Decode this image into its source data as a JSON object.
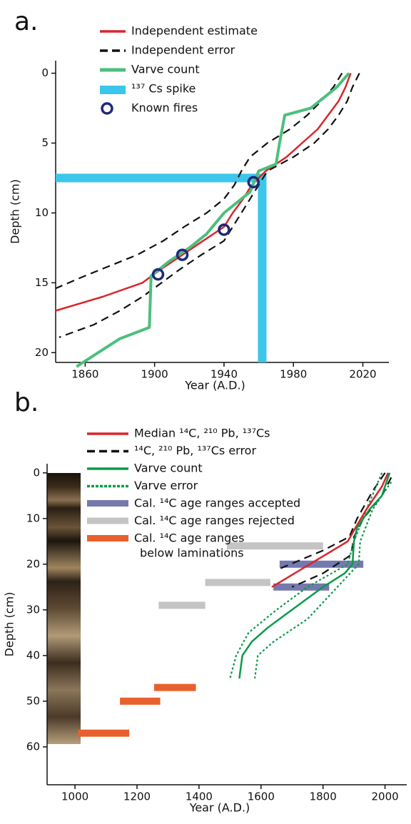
{
  "chart_data": [
    {
      "type": "line",
      "panel_label": "a.",
      "x_label": "Year (A.D.)",
      "y_label": "Depth (cm)",
      "xlim": [
        1843,
        2035
      ],
      "ylim": [
        -0.9,
        20.7
      ],
      "y_inverted": true,
      "xticks": [
        1860,
        1900,
        1940,
        1980,
        2020
      ],
      "yticks": [
        0,
        5,
        10,
        15,
        20
      ],
      "series": [
        {
          "name": "Independent estimate",
          "kind": "line",
          "line_style": "solid",
          "color": "#d9252b",
          "x": [
            2013,
            2010,
            2006,
            2000,
            1994,
            1985,
            1976,
            1964,
            1956,
            1951,
            1945,
            1940,
            1928,
            1916,
            1904,
            1893,
            1870,
            1843
          ],
          "y": [
            0,
            1,
            2,
            3,
            4,
            5,
            6,
            7,
            8,
            9,
            10,
            11,
            12,
            13,
            14,
            15,
            16,
            17
          ]
        },
        {
          "name": "Independent error",
          "kind": "band",
          "line_style": "dashed",
          "color": "#111111",
          "lower": {
            "x": [
              2008,
              2003,
              1996,
              1988,
              1978,
              1965,
              1955,
              1950,
              1946,
              1940,
              1930,
              1917,
              1905,
              1890,
              1860,
              1843
            ],
            "y": [
              0,
              1,
              2,
              3,
              4,
              5,
              6,
              7,
              8,
              9,
              10,
              11,
              12,
              13,
              14.5,
              15.4
            ]
          },
          "upper": {
            "x": [
              2018,
              2014,
              2011,
              2006,
              2000,
              1992,
              1980,
              1965,
              1960,
              1955,
              1950,
              1945,
              1940,
              1927,
              1915,
              1904,
              1893,
              1880,
              1865,
              1845
            ],
            "y": [
              0,
              1,
              2,
              3,
              4,
              5,
              6,
              7,
              8,
              9,
              10,
              11,
              12,
              13,
              14,
              15,
              16,
              17,
              18,
              18.9
            ]
          }
        },
        {
          "name": "Varve count",
          "kind": "line",
          "line_style": "solid",
          "color": "#4cbf7d",
          "x": [
            2012,
            2005,
            1990,
            1975,
            1972,
            1970,
            1960,
            1955,
            1945,
            1940,
            1930,
            1920,
            1908,
            1898,
            1897,
            1880,
            1855
          ],
          "y": [
            0,
            1,
            2.5,
            3,
            5,
            6.5,
            7,
            8.5,
            9.5,
            10,
            11.5,
            12.5,
            13.5,
            14.5,
            18.2,
            19,
            21
          ]
        },
        {
          "name": "¹³⁷ Cs spike",
          "kind": "spike",
          "color": "#3cc6ea",
          "x": 1962,
          "y": 7.5
        },
        {
          "name": "Known fires",
          "kind": "marker",
          "color": "#1f2a7a",
          "x": [
            1902,
            1916,
            1940,
            1957
          ],
          "y": [
            14.4,
            13,
            11.2,
            7.8
          ]
        }
      ]
    },
    {
      "type": "line",
      "panel_label": "b.",
      "x_label": "Year (A.D.)",
      "y_label": "Depth (cm)",
      "xlim": [
        910,
        2070
      ],
      "ylim": [
        -2,
        68.3
      ],
      "y_inverted": true,
      "xticks": [
        1000,
        1200,
        1400,
        1600,
        1800,
        2000
      ],
      "yticks": [
        0,
        10,
        20,
        30,
        40,
        50,
        60
      ],
      "series": [
        {
          "name": "Median ¹⁴C, ²¹⁰ Pb, ¹³⁷Cs",
          "kind": "line",
          "line_style": "solid",
          "color": "#d9252b",
          "x": [
            2010,
            1990,
            1940,
            1905,
            1880,
            1635
          ],
          "y": [
            0,
            3,
            8,
            12,
            15,
            25
          ]
        },
        {
          "name": "¹⁴C, ²¹⁰ Pb, ¹³⁷Cs error",
          "kind": "band",
          "line_style": "dashed",
          "color": "#111111",
          "lower": {
            "x": [
              2000,
              1960,
              1910,
              1885,
              1800,
              1660
            ],
            "y": [
              0,
              4,
              10,
              14,
              17,
              21
            ]
          },
          "upper": {
            "x": [
              2020,
              1990,
              1930,
              1900,
              1890,
              1800,
              1700
            ],
            "y": [
              1,
              5,
              10,
              14,
              18,
              22,
              25
            ]
          }
        },
        {
          "name": "Varve count",
          "kind": "line",
          "line_style": "solid",
          "color": "#0a9a48",
          "x": [
            2015,
            1990,
            1950,
            1910,
            1900,
            1895,
            1870,
            1800,
            1700,
            1620,
            1570,
            1540,
            1530
          ],
          "y": [
            0,
            5,
            8,
            12,
            15,
            20,
            22,
            25,
            30,
            34,
            37,
            40,
            45
          ]
        },
        {
          "name": "Varve error",
          "kind": "band",
          "line_style": "dotted",
          "color": "#0a9a48",
          "lower": {
            "x": [
              1990,
              1940,
              1900,
              1880,
              1750,
              1650,
              1560,
              1520,
              1500
            ],
            "y": [
              0,
              8,
              15,
              20,
              25,
              30,
              35,
              40,
              45
            ]
          },
          "upper": {
            "x": [
              2020,
              1960,
              1920,
              1915,
              1860,
              1750,
              1640,
              1590,
              1580
            ],
            "y": [
              2,
              8,
              15,
              20,
              24,
              32,
              37,
              40,
              45
            ]
          }
        },
        {
          "name": "Cal. ¹⁴C age ranges accepted",
          "kind": "range",
          "color": "#7479ae",
          "start": [
            1660,
            1640
          ],
          "end": [
            1930,
            1820
          ],
          "depth": [
            20,
            25
          ]
        },
        {
          "name": "Cal. ¹⁴C age ranges rejected",
          "kind": "range",
          "color": "#c4c4c4",
          "start": [
            1490,
            1420,
            1270
          ],
          "end": [
            1800,
            1630,
            1420
          ],
          "depth": [
            16,
            24,
            29
          ]
        },
        {
          "name": [
            "Cal. ¹⁴C age ranges",
            "below laminations"
          ],
          "kind": "range",
          "color": "#e8612c",
          "start": [
            1255,
            1145,
            1010
          ],
          "end": [
            1390,
            1275,
            1175
          ],
          "depth": [
            47,
            50,
            57
          ]
        }
      ]
    }
  ]
}
